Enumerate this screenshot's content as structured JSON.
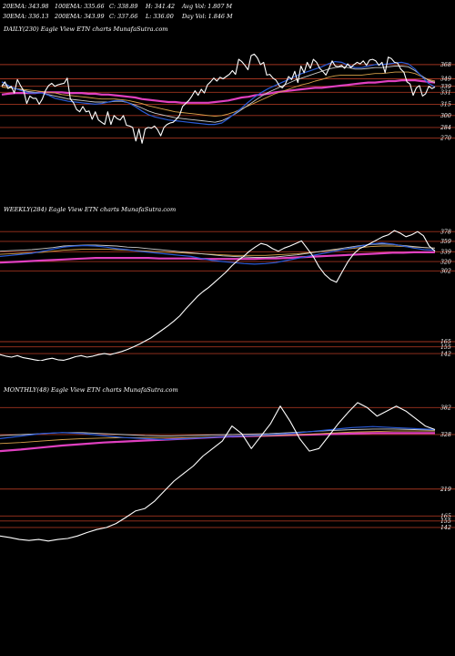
{
  "header": {
    "row1": [
      {
        "label": "20EMA: 343.98"
      },
      {
        "label": "100EMA: 335.66"
      },
      {
        "label": "C: 338.89"
      },
      {
        "label": "H: 341.42"
      },
      {
        "label": "Avg Vol: 1.807 M"
      }
    ],
    "row2": [
      {
        "label": "30EMA: 336.13"
      },
      {
        "label": "200EMA: 343.99"
      },
      {
        "label": "C: 337.66"
      },
      {
        "label": "L: 336.00"
      },
      {
        "label": "Day Vol: 1.846 M"
      }
    ]
  },
  "colors": {
    "background": "#000000",
    "price": "#ffffff",
    "ema_fast": "#2a5bd7",
    "ema_mid": "#c8c8c8",
    "ema_slow": "#d8a24a",
    "ema_long": "#e040c0",
    "level_line": "#a0341f"
  },
  "chart_data": [
    {
      "panel": "daily",
      "title": "DAILY(230) Eagle   View  ETN  charts MunafaSutra.com",
      "type": "line",
      "ylim": [
        262,
        408
      ],
      "levels": [
        {
          "value": 368,
          "label": "368"
        },
        {
          "value": 349,
          "label": "349"
        },
        {
          "value": 339,
          "label": "339"
        },
        {
          "value": 331,
          "label": "331"
        },
        {
          "value": 315,
          "label": "315"
        },
        {
          "value": 300,
          "label": "300"
        },
        {
          "value": 284,
          "label": "284"
        },
        {
          "value": 270,
          "label": "270"
        }
      ],
      "series": [
        {
          "key": "price",
          "values": [
            339,
            345,
            336,
            339,
            330,
            348,
            340,
            333,
            316,
            326,
            323,
            323,
            315,
            322,
            333,
            340,
            343,
            339,
            341,
            342,
            343,
            350,
            322,
            317,
            308,
            305,
            312,
            305,
            306,
            295,
            305,
            294,
            291,
            288,
            305,
            288,
            300,
            296,
            294,
            300,
            287,
            286,
            284,
            266,
            282,
            263,
            282,
            284,
            283,
            286,
            281,
            273,
            284,
            288,
            290,
            291,
            295,
            300,
            312,
            316,
            320,
            326,
            333,
            327,
            335,
            330,
            341,
            345,
            350,
            346,
            351,
            349,
            352,
            355,
            360,
            355,
            375,
            372,
            367,
            361,
            380,
            382,
            377,
            368,
            371,
            354,
            355,
            350,
            347,
            340,
            337,
            342,
            352,
            348,
            359,
            344,
            366,
            357,
            371,
            363,
            375,
            371,
            363,
            359,
            354,
            363,
            373,
            366,
            365,
            367,
            363,
            369,
            364,
            368,
            371,
            369,
            373,
            367,
            374,
            375,
            373,
            367,
            371,
            357,
            378,
            376,
            371,
            370,
            362,
            358,
            345,
            342,
            327,
            337,
            340,
            326,
            329,
            339,
            336,
            338
          ]
        },
        {
          "key": "ema_fast",
          "values": [
            345,
            340,
            336,
            333,
            330,
            330,
            330,
            327,
            323,
            321,
            319,
            318,
            317,
            316,
            315,
            316,
            318,
            320,
            320,
            317,
            312,
            306,
            301,
            298,
            296,
            294,
            293,
            292,
            291,
            290,
            289,
            288,
            288,
            290,
            296,
            303,
            310,
            318,
            325,
            331,
            336,
            340,
            344,
            348,
            352,
            356,
            359,
            362,
            365,
            369,
            372,
            371,
            367,
            364,
            364,
            366,
            368,
            368,
            369,
            370,
            371,
            369,
            362,
            352,
            343,
            338
          ]
        },
        {
          "key": "ema_mid",
          "values": [
            341,
            339,
            336,
            334,
            332,
            331,
            330,
            328,
            326,
            324,
            322,
            321,
            320,
            319,
            318,
            318,
            318,
            319,
            319,
            317,
            314,
            310,
            306,
            303,
            301,
            299,
            297,
            296,
            295,
            294,
            293,
            292,
            291,
            293,
            297,
            302,
            308,
            314,
            320,
            326,
            331,
            335,
            339,
            343,
            347,
            350,
            353,
            356,
            359,
            362,
            364,
            365,
            364,
            362,
            362,
            363,
            364,
            364,
            365,
            366,
            366,
            365,
            360,
            353,
            347,
            344
          ]
        },
        {
          "key": "ema_slow",
          "values": [
            338,
            337,
            336,
            335,
            334,
            333,
            332,
            331,
            330,
            328,
            327,
            326,
            325,
            324,
            323,
            322,
            322,
            322,
            321,
            320,
            318,
            316,
            313,
            311,
            309,
            307,
            305,
            304,
            303,
            302,
            301,
            300,
            299,
            300,
            302,
            305,
            309,
            313,
            317,
            321,
            325,
            329,
            332,
            335,
            338,
            341,
            343,
            346,
            348,
            351,
            353,
            354,
            354,
            354,
            354,
            355,
            356,
            356,
            357,
            358,
            358,
            358,
            356,
            352,
            348,
            346
          ]
        },
        {
          "key": "ema_long",
          "values": [
            328,
            329,
            330,
            330,
            330,
            330,
            331,
            331,
            331,
            331,
            330,
            330,
            330,
            329,
            329,
            328,
            328,
            327,
            326,
            325,
            324,
            322,
            321,
            320,
            319,
            318,
            318,
            317,
            317,
            317,
            317,
            317,
            318,
            319,
            320,
            322,
            324,
            325,
            327,
            328,
            329,
            331,
            332,
            333,
            334,
            335,
            336,
            337,
            337,
            338,
            339,
            340,
            341,
            342,
            343,
            344,
            344,
            345,
            346,
            346,
            347,
            347,
            347,
            346,
            345,
            344
          ]
        }
      ]
    },
    {
      "panel": "weekly",
      "title": "WEEKLY(284) Eagle   View  ETN  charts MunafaSutra.com",
      "type": "line",
      "ylim": [
        128,
        410
      ],
      "levels": [
        {
          "value": 378,
          "label": "378"
        },
        {
          "value": 359,
          "label": "359"
        },
        {
          "value": 339,
          "label": "339"
        },
        {
          "value": 320,
          "label": "320"
        },
        {
          "value": 302,
          "label": "302"
        },
        {
          "value": 165,
          "label": "165"
        },
        {
          "value": 155,
          "label": "155"
        },
        {
          "value": 142,
          "label": "142"
        }
      ],
      "series": [
        {
          "key": "price",
          "values": [
            140,
            137,
            135,
            138,
            134,
            132,
            130,
            128,
            131,
            133,
            130,
            129,
            132,
            136,
            138,
            135,
            137,
            140,
            142,
            140,
            143,
            146,
            150,
            155,
            160,
            166,
            172,
            180,
            188,
            196,
            205,
            215,
            228,
            240,
            252,
            262,
            270,
            280,
            290,
            300,
            312,
            322,
            330,
            340,
            348,
            355,
            352,
            345,
            340,
            346,
            350,
            355,
            360,
            345,
            330,
            310,
            295,
            285,
            280,
            300,
            320,
            335,
            345,
            350,
            356,
            362,
            368,
            372,
            380,
            375,
            368,
            372,
            378,
            370,
            350,
            340
          ]
        },
        {
          "key": "ema_fast",
          "values": [
            330,
            332,
            334,
            336,
            340,
            344,
            348,
            350,
            351,
            350,
            348,
            345,
            343,
            340,
            338,
            336,
            334,
            332,
            330,
            326,
            322,
            320,
            318,
            316,
            315,
            316,
            318,
            322,
            326,
            330,
            334,
            338,
            342,
            346,
            350,
            354,
            356,
            354,
            350,
            346,
            343,
            342
          ]
        },
        {
          "key": "ema_mid",
          "values": [
            340,
            341,
            342,
            343,
            345,
            347,
            350,
            351,
            352,
            352,
            351,
            350,
            348,
            347,
            345,
            343,
            341,
            339,
            337,
            335,
            333,
            331,
            330,
            329,
            328,
            328,
            329,
            331,
            333,
            336,
            339,
            342,
            345,
            348,
            351,
            353,
            354,
            353,
            351,
            349,
            347,
            346
          ]
        },
        {
          "key": "ema_slow",
          "values": [
            334,
            335,
            336,
            337,
            338,
            340,
            342,
            343,
            344,
            344,
            344,
            343,
            342,
            341,
            340,
            339,
            338,
            337,
            336,
            335,
            334,
            333,
            332,
            332,
            332,
            332,
            333,
            334,
            335,
            337,
            339,
            341,
            343,
            345,
            347,
            349,
            350,
            350,
            349,
            348,
            347,
            346
          ]
        },
        {
          "key": "ema_long",
          "values": [
            318,
            319,
            320,
            321,
            322,
            323,
            324,
            325,
            326,
            327,
            327,
            327,
            327,
            327,
            327,
            326,
            326,
            326,
            326,
            325,
            325,
            325,
            325,
            325,
            325,
            326,
            326,
            327,
            328,
            329,
            330,
            331,
            332,
            333,
            334,
            335,
            336,
            337,
            337,
            338,
            338,
            338
          ]
        }
      ]
    },
    {
      "panel": "monthly",
      "title": "MONTHLY(48) Eagle   View  ETN  charts MunafaSutra.com",
      "type": "line",
      "ylim": [
        100,
        410
      ],
      "levels": [
        {
          "value": 382,
          "label": "382"
        },
        {
          "value": 328,
          "label": "328"
        },
        {
          "value": 219,
          "label": "219"
        },
        {
          "value": 165,
          "label": "165"
        },
        {
          "value": 155,
          "label": "155"
        },
        {
          "value": 142,
          "label": "142"
        }
      ],
      "series": [
        {
          "key": "price",
          "values": [
            125,
            122,
            118,
            116,
            118,
            115,
            118,
            120,
            125,
            132,
            138,
            142,
            150,
            162,
            175,
            180,
            195,
            215,
            235,
            250,
            265,
            285,
            300,
            315,
            345,
            330,
            300,
            325,
            350,
            385,
            355,
            320,
            295,
            300,
            325,
            350,
            372,
            392,
            382,
            365,
            375,
            385,
            375,
            360,
            345,
            338
          ]
        },
        {
          "key": "ema_fast",
          "values": [
            320,
            325,
            330,
            332,
            330,
            326,
            322,
            320,
            318,
            320,
            322,
            324,
            326,
            328,
            330,
            334,
            338,
            342,
            344,
            342,
            340,
            338
          ]
        },
        {
          "key": "ema_mid",
          "values": [
            326,
            328,
            330,
            332,
            332,
            330,
            328,
            326,
            325,
            326,
            327,
            328,
            329,
            330,
            332,
            334,
            336,
            338,
            339,
            339,
            338,
            337
          ]
        },
        {
          "key": "ema_slow",
          "values": [
            310,
            312,
            315,
            318,
            320,
            321,
            322,
            322,
            322,
            322,
            323,
            324,
            325,
            326,
            327,
            329,
            331,
            333,
            334,
            335,
            335,
            335
          ]
        },
        {
          "key": "ema_long",
          "values": [
            295,
            298,
            302,
            306,
            309,
            312,
            314,
            316,
            318,
            320,
            322,
            324,
            325,
            326,
            327,
            328,
            329,
            330,
            331,
            331,
            331,
            331
          ]
        }
      ]
    }
  ]
}
